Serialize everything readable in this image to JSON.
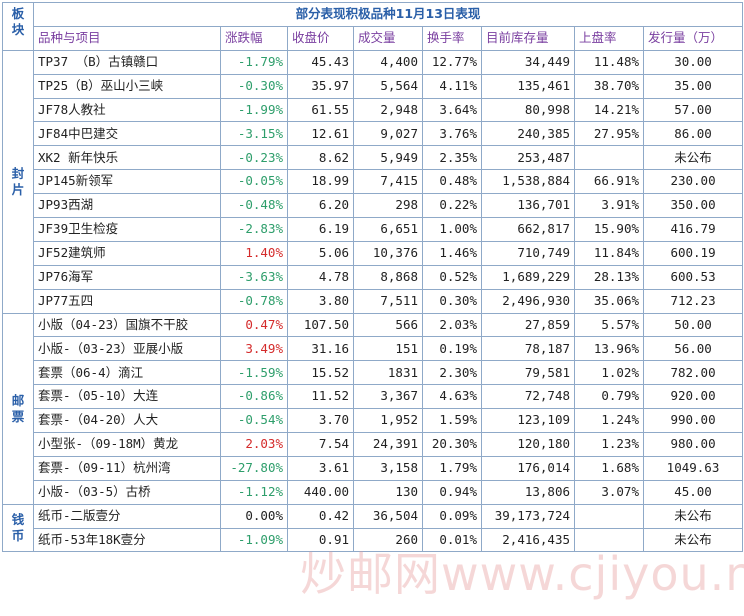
{
  "title": "部分表现积极品种11月13日表现",
  "block_header": [
    "板",
    "块"
  ],
  "columns": [
    "品种与项目",
    "涨跌幅",
    "收盘价",
    "成交量",
    "换手率",
    "目前库存量",
    "上盘率",
    "发行量（万）"
  ],
  "sections": [
    {
      "label": [
        "封",
        "片"
      ],
      "rows": [
        {
          "name": "TP37 （B）古镇赣口",
          "change": "-1.79%",
          "dir": "neg",
          "close": "45.43",
          "volume": "4,400",
          "turnover": "12.77%",
          "stock": "34,449",
          "rate": "11.48%",
          "issue": "30.00"
        },
        {
          "name": "TP25（B）巫山小三峡",
          "change": "-0.30%",
          "dir": "neg",
          "close": "35.97",
          "volume": "5,564",
          "turnover": "4.11%",
          "stock": "135,461",
          "rate": "38.70%",
          "issue": "35.00"
        },
        {
          "name": "JF78人教社",
          "change": "-1.99%",
          "dir": "neg",
          "close": "61.55",
          "volume": "2,948",
          "turnover": "3.64%",
          "stock": "80,998",
          "rate": "14.21%",
          "issue": "57.00"
        },
        {
          "name": "JF84中巴建交",
          "change": "-3.15%",
          "dir": "neg",
          "close": "12.61",
          "volume": "9,027",
          "turnover": "3.76%",
          "stock": "240,385",
          "rate": "27.95%",
          "issue": "86.00"
        },
        {
          "name": "XK2 新年快乐",
          "change": "-0.23%",
          "dir": "neg",
          "close": "8.62",
          "volume": "5,949",
          "turnover": "2.35%",
          "stock": "253,487",
          "rate": "",
          "issue": "未公布"
        },
        {
          "name": "JP145新领军",
          "change": "-0.05%",
          "dir": "neg",
          "close": "18.99",
          "volume": "7,415",
          "turnover": "0.48%",
          "stock": "1,538,884",
          "rate": "66.91%",
          "issue": "230.00"
        },
        {
          "name": "JP93西湖",
          "change": "-0.48%",
          "dir": "neg",
          "close": "6.20",
          "volume": "298",
          "turnover": "0.22%",
          "stock": "136,701",
          "rate": "3.91%",
          "issue": "350.00"
        },
        {
          "name": "JF39卫生检疫",
          "change": "-2.83%",
          "dir": "neg",
          "close": "6.19",
          "volume": "6,651",
          "turnover": "1.00%",
          "stock": "662,817",
          "rate": "15.90%",
          "issue": "416.79"
        },
        {
          "name": "JF52建筑师",
          "change": "1.40%",
          "dir": "pos",
          "close": "5.06",
          "volume": "10,376",
          "turnover": "1.46%",
          "stock": "710,749",
          "rate": "11.84%",
          "issue": "600.19"
        },
        {
          "name": "JP76海军",
          "change": "-3.63%",
          "dir": "neg",
          "close": "4.78",
          "volume": "8,868",
          "turnover": "0.52%",
          "stock": "1,689,229",
          "rate": "28.13%",
          "issue": "600.53"
        },
        {
          "name": "JP77五四",
          "change": "-0.78%",
          "dir": "neg",
          "close": "3.80",
          "volume": "7,511",
          "turnover": "0.30%",
          "stock": "2,496,930",
          "rate": "35.06%",
          "issue": "712.23"
        }
      ]
    },
    {
      "label": [
        "邮",
        "票"
      ],
      "rows": [
        {
          "name": "小版（04-23）国旗不干胶",
          "change": "0.47%",
          "dir": "pos",
          "close": "107.50",
          "volume": "566",
          "turnover": "2.03%",
          "stock": "27,859",
          "rate": "5.57%",
          "issue": "50.00"
        },
        {
          "name": "小版-（03-23）亚展小版",
          "change": "3.49%",
          "dir": "pos",
          "close": "31.16",
          "volume": "151",
          "turnover": "0.19%",
          "stock": "78,187",
          "rate": "13.96%",
          "issue": "56.00"
        },
        {
          "name": "套票（06-4）滴江",
          "change": "-1.59%",
          "dir": "neg",
          "close": "15.52",
          "volume": "1831",
          "turnover": "2.30%",
          "stock": "79,581",
          "rate": "1.02%",
          "issue": "782.00"
        },
        {
          "name": "套票-（05-10）大连",
          "change": "-0.86%",
          "dir": "neg",
          "close": "11.52",
          "volume": "3,367",
          "turnover": "4.63%",
          "stock": "72,748",
          "rate": "0.79%",
          "issue": "920.00"
        },
        {
          "name": "套票-（04-20）人大",
          "change": "-0.54%",
          "dir": "neg",
          "close": "3.70",
          "volume": "1,952",
          "turnover": "1.59%",
          "stock": "123,109",
          "rate": "1.24%",
          "issue": "990.00"
        },
        {
          "name": "小型张-（09-18M）黄龙",
          "change": "2.03%",
          "dir": "pos",
          "close": "7.54",
          "volume": "24,391",
          "turnover": "20.30%",
          "stock": "120,180",
          "rate": "1.23%",
          "issue": "980.00"
        },
        {
          "name": "套票-（09-11）杭州湾",
          "change": "-27.80%",
          "dir": "neg",
          "close": "3.61",
          "volume": "3,158",
          "turnover": "1.79%",
          "stock": "176,014",
          "rate": "1.68%",
          "issue": "1049.63"
        },
        {
          "name": "小版-（03-5）古桥",
          "change": "-1.12%",
          "dir": "neg",
          "close": "440.00",
          "volume": "130",
          "turnover": "0.94%",
          "stock": "13,806",
          "rate": "3.07%",
          "issue": "45.00"
        }
      ]
    },
    {
      "label": [
        "钱",
        "币"
      ],
      "rows": [
        {
          "name": "纸币-二版壹分",
          "change": "0.00%",
          "dir": "zero",
          "close": "0.42",
          "volume": "36,504",
          "turnover": "0.09%",
          "stock": "39,173,724",
          "rate": "",
          "issue": "未公布"
        },
        {
          "name": "纸币-53年18K壹分",
          "change": "-1.09%",
          "dir": "neg",
          "close": "0.91",
          "volume": "260",
          "turnover": "0.01%",
          "stock": "2,416,435",
          "rate": "",
          "issue": "未公布"
        }
      ]
    }
  ],
  "watermark": "炒邮网www.cjiyou.net"
}
